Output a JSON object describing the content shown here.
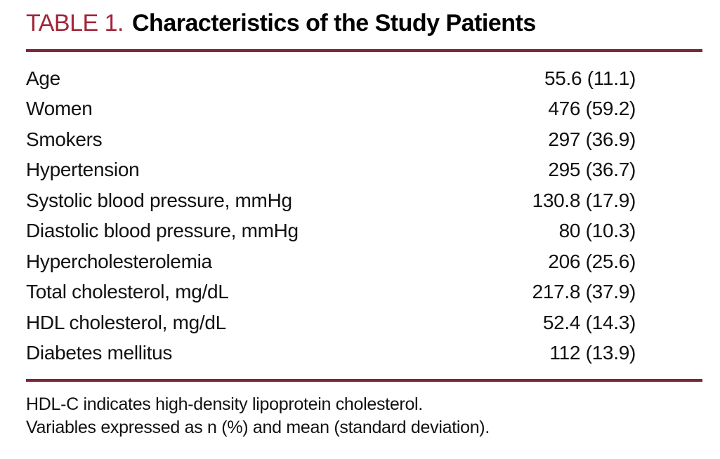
{
  "table": {
    "label": "TABLE 1.",
    "title": "Characteristics of the Study Patients",
    "rows": [
      {
        "label": "Age",
        "value": "55.6 (11.1)"
      },
      {
        "label": "Women",
        "value": "476 (59.2)"
      },
      {
        "label": "Smokers",
        "value": "297 (36.9)"
      },
      {
        "label": "Hypertension",
        "value": "295 (36.7)"
      },
      {
        "label": "Systolic blood pressure, mmHg",
        "value": "130.8 (17.9)"
      },
      {
        "label": "Diastolic blood pressure, mmHg",
        "value": "80 (10.3)"
      },
      {
        "label": "Hypercholesterolemia",
        "value": "206 (25.6)"
      },
      {
        "label": "Total cholesterol, mg/dL",
        "value": "217.8 (37.9)"
      },
      {
        "label": "HDL cholesterol, mg/dL",
        "value": "52.4 (14.3)"
      },
      {
        "label": "Diabetes mellitus",
        "value": "112 (13.9)"
      }
    ],
    "footnotes": [
      "HDL-C indicates high-density lipoprotein cholesterol.",
      "Variables expressed as n (%) and mean (standard deviation)."
    ]
  },
  "colors": {
    "accent_red": "#a22639",
    "rule_maroon": "#7c2639",
    "text": "#111111"
  }
}
